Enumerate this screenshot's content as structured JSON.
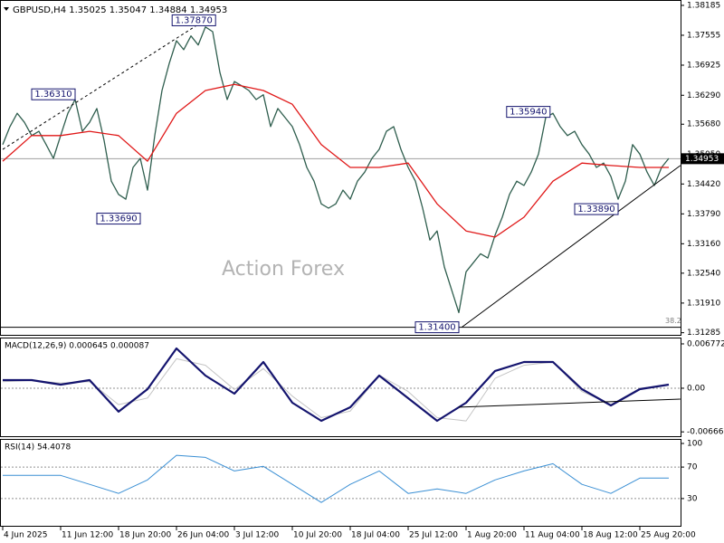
{
  "chart_data": [
    {
      "type": "line",
      "title": "GBPUSD,H4  1.35025 1.35047 1.34884 1.34953",
      "watermark": "Action Forex",
      "xlim": [
        -0.375,
        93.625
      ],
      "ylim": [
        1.3124,
        1.3826
      ],
      "yticks": [
        1.38185,
        1.37555,
        1.36925,
        {
          "value": 1.3629,
          "label": "1.36290"
        },
        {
          "value": 1.3568,
          "label": "1.35680"
        },
        {
          "value": 1.3505,
          "label": "1.35050"
        },
        {
          "value": 1.3442,
          "label": "1.34420"
        },
        {
          "value": 1.3379,
          "label": "1.33790"
        },
        {
          "value": 1.3316,
          "label": "1.33160"
        },
        {
          "value": 1.3254,
          "label": "1.32540"
        },
        {
          "value": 1.3191,
          "label": "1.31910"
        },
        1.31285
      ],
      "current_price": 1.34953,
      "series": [
        {
          "color": "#2f5e4e",
          "values": [
            1.3525,
            1.3563,
            1.3591,
            1.3572,
            1.3544,
            1.3553,
            1.3525,
            1.3496,
            1.3544,
            1.3591,
            1.362,
            1.3553,
            1.3572,
            1.3601,
            1.3534,
            1.3448,
            1.342,
            1.341,
            1.3477,
            1.3496,
            1.3429,
            1.3544,
            1.3639,
            1.3696,
            1.3744,
            1.3725,
            1.3754,
            1.3735,
            1.3773,
            1.3763,
            1.3677,
            1.362,
            1.3658,
            1.3649,
            1.3639,
            1.362,
            1.363,
            1.3563,
            1.3601,
            1.3582,
            1.3563,
            1.3525,
            1.3477,
            1.3448,
            1.34,
            1.3391,
            1.34,
            1.3429,
            1.341,
            1.3448,
            1.3467,
            1.3496,
            1.3515,
            1.3553,
            1.3563,
            1.3515,
            1.3477,
            1.3448,
            1.3391,
            1.3324,
            1.3343,
            1.3267,
            1.3219,
            1.3171,
            1.3257,
            1.3276,
            1.3295,
            1.3286,
            1.3334,
            1.3372,
            1.342,
            1.3448,
            1.3439,
            1.3467,
            1.3505,
            1.3582,
            1.3591,
            1.3563,
            1.3544,
            1.3553,
            1.3525,
            1.3505,
            1.3477,
            1.3486,
            1.3458,
            1.341,
            1.3448,
            1.3525,
            1.3505,
            1.3467,
            1.3439,
            1.3477,
            1.3496
          ]
        },
        {
          "color": "#e01818",
          "x": [
            0,
            4,
            8,
            12,
            16,
            20,
            24,
            28,
            32,
            36,
            40,
            44,
            48,
            52,
            56,
            60,
            64,
            68,
            72,
            76,
            80,
            84,
            88,
            92
          ],
          "values": [
            1.349,
            1.3544,
            1.3544,
            1.3553,
            1.3544,
            1.349,
            1.3591,
            1.3639,
            1.3652,
            1.3639,
            1.361,
            1.3525,
            1.3477,
            1.3477,
            1.3486,
            1.34,
            1.3343,
            1.333,
            1.3372,
            1.3448,
            1.3486,
            1.3481,
            1.3477,
            1.3477
          ]
        }
      ],
      "annotations": [
        {
          "label": "1.36310",
          "x": 10,
          "y": 1.3631
        },
        {
          "label": "1.37870",
          "x": 29.4,
          "y": 1.3787
        },
        {
          "label": "1.33690",
          "x": 19,
          "y": 1.3369
        },
        {
          "label": "1.31400",
          "x": 63,
          "y": 1.314
        },
        {
          "label": "1.35940",
          "x": 75.6,
          "y": 1.3594
        },
        {
          "label": "1.33890",
          "x": 85,
          "y": 1.3389
        }
      ],
      "trendlines": [
        {
          "x": [
            0,
            28.4
          ],
          "y": [
            1.3515,
            1.3792
          ],
          "style": "dotted"
        },
        {
          "x": [
            63.4,
            93.6
          ],
          "y": [
            1.314,
            1.3481
          ],
          "style": "solid"
        }
      ],
      "fib_level": {
        "percent": 38.2,
        "price": 1.314
      }
    },
    {
      "type": "line",
      "title": "MACD(12,26,9) 0.000645 0.000087",
      "ylim": [
        -0.00733,
        0.00746
      ],
      "yticks": [
        0.006772,
        {
          "value": 0,
          "label": "0.00"
        },
        -0.006667
      ],
      "levels": [
        0
      ],
      "series": [
        {
          "color": "#c4c4c4",
          "width": 1,
          "x": [
            0,
            4,
            8,
            12,
            16,
            20,
            24,
            28,
            32,
            36,
            40,
            44,
            48,
            52,
            56,
            60,
            64,
            68,
            72,
            76,
            80,
            84,
            88,
            92
          ],
          "values": [
            0.001,
            0.0012,
            0.0008,
            0.001,
            -0.0025,
            -0.0015,
            0.0045,
            0.0035,
            -0.0002,
            0.003,
            -0.0012,
            -0.0045,
            -0.0035,
            0.002,
            -0.0005,
            -0.0045,
            -0.005,
            0.0015,
            0.0035,
            0.004,
            -0.0005,
            -0.0025,
            0,
            0.0005
          ]
        },
        {
          "color": "#14146e",
          "width": 2.2,
          "x": [
            0,
            4,
            8,
            12,
            16,
            20,
            24,
            28,
            32,
            36,
            40,
            44,
            48,
            52,
            56,
            60,
            64,
            68,
            72,
            76,
            80,
            84,
            88,
            92
          ],
          "values": [
            0.00124,
            0.00124,
            0.00055,
            0.00124,
            -0.00359,
            -0.00014,
            0.00608,
            0.00193,
            -0.00083,
            0.00401,
            -0.00221,
            -0.00498,
            -0.0029,
            0.00193,
            -0.00152,
            -0.00498,
            -0.00221,
            0.00263,
            0.00401,
            0.00401,
            -0.00014,
            -0.00263,
            -0.00014,
            0.00055
          ]
        }
      ],
      "trendlines": [
        {
          "x": [
            63,
            93.6
          ],
          "y": [
            -0.0029,
            -0.00166
          ],
          "style": "solid"
        }
      ]
    },
    {
      "type": "line",
      "title": "RSI(14) 54.4078",
      "ylim": [
        0,
        100
      ],
      "yticks": [
        100,
        70,
        30
      ],
      "levels": [
        70,
        30
      ],
      "series": [
        {
          "color": "#3a8fd4",
          "width": 1,
          "x": [
            0,
            4,
            8,
            12,
            16,
            20,
            24,
            28,
            32,
            36,
            40,
            44,
            48,
            52,
            56,
            60,
            64,
            68,
            72,
            76,
            80,
            84,
            88,
            92
          ],
          "values": [
            59.4,
            59.4,
            59.4,
            48,
            36.6,
            53.7,
            85,
            82.3,
            65.1,
            70.9,
            48,
            25.1,
            48,
            65.1,
            36.6,
            42.3,
            36.6,
            53.7,
            65.1,
            74.3,
            48,
            36.6,
            56,
            56
          ]
        }
      ],
      "xticks": [
        {
          "value": 0,
          "label": "4 Jun 2025"
        },
        {
          "value": 8,
          "label": "11 Jun 12:00"
        },
        {
          "value": 16,
          "label": "18 Jun 20:00"
        },
        {
          "value": 24,
          "label": "26 Jun 04:00"
        },
        {
          "value": 32,
          "label": "3 Jul 12:00"
        },
        {
          "value": 40,
          "label": "10 Jul 20:00"
        },
        {
          "value": 48,
          "label": "18 Jul 04:00"
        },
        {
          "value": 56,
          "label": "25 Jul 12:00"
        },
        {
          "value": 64,
          "label": "1 Aug 20:00"
        },
        {
          "value": 72,
          "label": "11 Aug 04:00"
        },
        {
          "value": 80,
          "label": "18 Aug 12:00"
        },
        {
          "value": 88,
          "label": "25 Aug 20:00"
        }
      ]
    }
  ]
}
